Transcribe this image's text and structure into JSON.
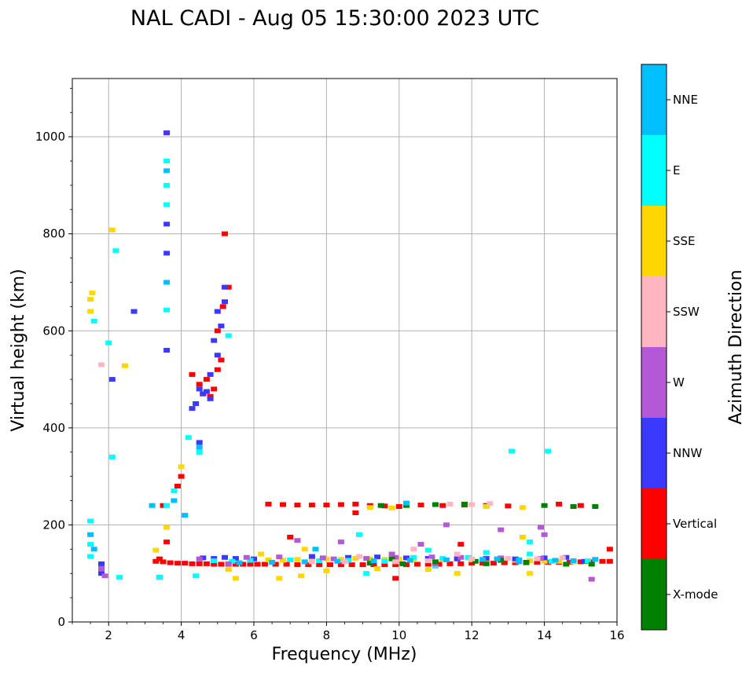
{
  "chart_data": {
    "type": "scatter",
    "title": "NAL CADI - Aug 05 15:30:00 2023 UTC",
    "xlabel": "Frequency (MHz)",
    "ylabel": "Virtual height (km)",
    "xlim": [
      1,
      16
    ],
    "ylim": [
      0,
      1120
    ],
    "xticks": [
      "2",
      "4",
      "6",
      "8",
      "10",
      "12",
      "14",
      "16"
    ],
    "yticks": [
      "0",
      "200",
      "400",
      "600",
      "800",
      "1000"
    ],
    "xtick_values": [
      2,
      4,
      6,
      8,
      10,
      12,
      14,
      16
    ],
    "ytick_values": [
      0,
      200,
      400,
      600,
      800,
      1000
    ],
    "grid": true,
    "colorbar": {
      "label": "Azimuth Direction",
      "categories": [
        {
          "name": "X-mode",
          "color": "#008000"
        },
        {
          "name": "Vertical",
          "color": "#ff0000"
        },
        {
          "name": "NNW",
          "color": "#3a3aff"
        },
        {
          "name": "W",
          "color": "#b558d6"
        },
        {
          "name": "SSW",
          "color": "#ffb6c1"
        },
        {
          "name": "SSE",
          "color": "#ffd700"
        },
        {
          "name": "E",
          "color": "#00ffff"
        },
        {
          "name": "NNE",
          "color": "#00bfff"
        }
      ]
    },
    "series": [
      {
        "name": "Vertical",
        "points": [
          [
            3.3,
            125
          ],
          [
            3.5,
            124
          ],
          [
            3.7,
            122
          ],
          [
            3.9,
            121
          ],
          [
            4.1,
            121
          ],
          [
            4.3,
            120
          ],
          [
            4.5,
            120
          ],
          [
            4.7,
            120
          ],
          [
            4.9,
            119
          ],
          [
            5.1,
            119
          ],
          [
            5.3,
            119
          ],
          [
            5.5,
            119
          ],
          [
            5.7,
            119
          ],
          [
            5.9,
            119
          ],
          [
            6.1,
            119
          ],
          [
            6.3,
            119
          ],
          [
            6.6,
            119
          ],
          [
            6.9,
            119
          ],
          [
            7.2,
            118
          ],
          [
            7.5,
            118
          ],
          [
            7.8,
            118
          ],
          [
            8.1,
            118
          ],
          [
            8.4,
            118
          ],
          [
            8.7,
            118
          ],
          [
            9.0,
            118
          ],
          [
            9.3,
            118
          ],
          [
            9.6,
            118
          ],
          [
            9.9,
            118
          ],
          [
            10.2,
            118
          ],
          [
            10.5,
            119
          ],
          [
            10.8,
            119
          ],
          [
            11.1,
            119
          ],
          [
            11.4,
            120
          ],
          [
            11.7,
            120
          ],
          [
            12.0,
            121
          ],
          [
            12.3,
            121
          ],
          [
            12.6,
            121
          ],
          [
            12.9,
            122
          ],
          [
            13.2,
            122
          ],
          [
            13.5,
            122
          ],
          [
            13.8,
            123
          ],
          [
            14.1,
            123
          ],
          [
            14.4,
            123
          ],
          [
            14.7,
            123
          ],
          [
            15.0,
            124
          ],
          [
            15.3,
            124
          ],
          [
            15.6,
            125
          ],
          [
            15.8,
            125
          ],
          [
            6.4,
            243
          ],
          [
            6.8,
            242
          ],
          [
            7.2,
            241
          ],
          [
            7.6,
            241
          ],
          [
            8.0,
            241
          ],
          [
            8.4,
            242
          ],
          [
            8.8,
            243
          ],
          [
            9.2,
            240
          ],
          [
            9.6,
            239
          ],
          [
            10.0,
            238
          ],
          [
            10.6,
            241
          ],
          [
            11.2,
            240
          ],
          [
            11.8,
            241
          ],
          [
            12.4,
            240
          ],
          [
            13.0,
            239
          ],
          [
            14.4,
            243
          ],
          [
            15.0,
            240
          ],
          [
            4.3,
            510
          ],
          [
            4.5,
            490
          ],
          [
            4.6,
            470
          ],
          [
            4.7,
            500
          ],
          [
            4.8,
            465
          ],
          [
            4.9,
            480
          ],
          [
            5.0,
            520
          ],
          [
            5.1,
            540
          ],
          [
            5.15,
            650
          ],
          [
            5.0,
            600
          ],
          [
            3.5,
            240
          ],
          [
            3.9,
            280
          ],
          [
            4.0,
            300
          ],
          [
            3.6,
            165
          ],
          [
            3.4,
            130
          ],
          [
            7.0,
            175
          ],
          [
            8.8,
            225
          ],
          [
            9.9,
            90
          ],
          [
            11.7,
            160
          ],
          [
            15.8,
            150
          ],
          [
            5.2,
            800
          ],
          [
            5.3,
            690
          ],
          [
            3.6,
            1008
          ]
        ]
      },
      {
        "name": "SSE",
        "points": [
          [
            6.4,
            128
          ],
          [
            6.8,
            127
          ],
          [
            7.2,
            129
          ],
          [
            7.6,
            128
          ],
          [
            8.0,
            130
          ],
          [
            8.4,
            129
          ],
          [
            8.8,
            131
          ],
          [
            9.2,
            130
          ],
          [
            9.6,
            129
          ],
          [
            10.0,
            130
          ],
          [
            10.4,
            128
          ],
          [
            10.8,
            130
          ],
          [
            11.2,
            129
          ],
          [
            11.6,
            130
          ],
          [
            12.0,
            128
          ],
          [
            12.4,
            129
          ],
          [
            12.8,
            128
          ],
          [
            13.2,
            127
          ],
          [
            13.6,
            126
          ],
          [
            14.0,
            125
          ],
          [
            14.4,
            125
          ],
          [
            14.8,
            124
          ],
          [
            15.2,
            124
          ],
          [
            6.2,
            140
          ],
          [
            7.4,
            150
          ],
          [
            8.0,
            105
          ],
          [
            9.4,
            110
          ],
          [
            10.8,
            108
          ],
          [
            11.6,
            100
          ],
          [
            13.4,
            175
          ],
          [
            13.6,
            100
          ],
          [
            12.4,
            238
          ],
          [
            13.4,
            236
          ],
          [
            9.2,
            236
          ],
          [
            9.8,
            235
          ],
          [
            1.5,
            665
          ],
          [
            1.5,
            640
          ],
          [
            1.55,
            678
          ],
          [
            2.1,
            808
          ],
          [
            2.45,
            528
          ],
          [
            3.3,
            148
          ],
          [
            3.6,
            195
          ],
          [
            4.0,
            320
          ],
          [
            5.5,
            90
          ],
          [
            6.7,
            90
          ],
          [
            7.3,
            95
          ],
          [
            5.3,
            108
          ]
        ]
      },
      {
        "name": "NNW",
        "points": [
          [
            4.6,
            132
          ],
          [
            4.9,
            131
          ],
          [
            5.2,
            133
          ],
          [
            5.5,
            131
          ],
          [
            6.0,
            130
          ],
          [
            7.6,
            135
          ],
          [
            8.6,
            133
          ],
          [
            9.4,
            134
          ],
          [
            10.2,
            132
          ],
          [
            10.8,
            131
          ],
          [
            11.6,
            130
          ],
          [
            12.4,
            131
          ],
          [
            13.2,
            130
          ],
          [
            14.0,
            132
          ],
          [
            14.6,
            133
          ],
          [
            15.1,
            125
          ],
          [
            3.6,
            1008
          ],
          [
            3.6,
            760
          ],
          [
            3.6,
            820
          ],
          [
            3.6,
            560
          ],
          [
            4.5,
            480
          ],
          [
            4.6,
            470
          ],
          [
            4.7,
            475
          ],
          [
            4.8,
            460
          ],
          [
            4.9,
            580
          ],
          [
            5.0,
            640
          ],
          [
            5.1,
            610
          ],
          [
            5.2,
            660
          ],
          [
            4.3,
            440
          ],
          [
            4.4,
            450
          ],
          [
            4.5,
            370
          ],
          [
            1.8,
            120
          ],
          [
            1.8,
            100
          ],
          [
            2.7,
            640
          ],
          [
            2.1,
            500
          ],
          [
            3.4,
            92
          ],
          [
            5.2,
            690
          ],
          [
            5.0,
            550
          ],
          [
            4.8,
            510
          ]
        ]
      },
      {
        "name": "E",
        "points": [
          [
            4.9,
            126
          ],
          [
            5.4,
            125
          ],
          [
            5.9,
            127
          ],
          [
            7.0,
            128
          ],
          [
            7.8,
            126
          ],
          [
            8.6,
            127
          ],
          [
            9.6,
            125
          ],
          [
            10.4,
            133
          ],
          [
            11.2,
            131
          ],
          [
            11.9,
            133
          ],
          [
            12.4,
            143
          ],
          [
            13.6,
            140
          ],
          [
            14.2,
            125
          ],
          [
            15.2,
            126
          ],
          [
            3.6,
            950
          ],
          [
            3.6,
            900
          ],
          [
            3.6,
            860
          ],
          [
            3.6,
            643
          ],
          [
            4.2,
            380
          ],
          [
            4.5,
            350
          ],
          [
            3.8,
            270
          ],
          [
            3.6,
            240
          ],
          [
            5.3,
            590
          ],
          [
            1.6,
            620
          ],
          [
            2.0,
            575
          ],
          [
            2.1,
            340
          ],
          [
            2.2,
            765
          ],
          [
            13.1,
            352
          ],
          [
            14.1,
            352
          ],
          [
            13.6,
            165
          ],
          [
            10.8,
            148
          ],
          [
            8.9,
            180
          ],
          [
            9.1,
            100
          ],
          [
            4.4,
            95
          ],
          [
            3.4,
            92
          ],
          [
            2.3,
            92
          ],
          [
            1.5,
            208
          ],
          [
            1.5,
            160
          ],
          [
            1.5,
            135
          ],
          [
            11.0,
            115
          ]
        ]
      },
      {
        "name": "W",
        "points": [
          [
            5.8,
            133
          ],
          [
            6.7,
            134
          ],
          [
            7.9,
            132
          ],
          [
            9.1,
            131
          ],
          [
            9.9,
            133
          ],
          [
            10.9,
            134
          ],
          [
            11.7,
            133
          ],
          [
            12.8,
            132
          ],
          [
            13.9,
            131
          ],
          [
            15.3,
            88
          ],
          [
            11.3,
            200
          ],
          [
            13.9,
            195
          ],
          [
            1.9,
            95
          ],
          [
            1.8,
            110
          ],
          [
            7.2,
            168
          ],
          [
            8.4,
            165
          ],
          [
            9.8,
            140
          ],
          [
            10.6,
            160
          ],
          [
            12.8,
            190
          ],
          [
            14.0,
            180
          ],
          [
            4.5,
            130
          ],
          [
            5.3,
            120
          ],
          [
            8.2,
            130
          ],
          [
            11.0,
            120
          ]
        ]
      },
      {
        "name": "X-mode",
        "points": [
          [
            9.2,
            121
          ],
          [
            10.1,
            120
          ],
          [
            11.0,
            124
          ],
          [
            12.1,
            125
          ],
          [
            12.8,
            127
          ],
          [
            13.5,
            123
          ],
          [
            14.6,
            119
          ],
          [
            15.3,
            119
          ],
          [
            9.5,
            240
          ],
          [
            10.2,
            240
          ],
          [
            11.0,
            242
          ],
          [
            11.8,
            243
          ],
          [
            14.0,
            240
          ],
          [
            14.8,
            238
          ],
          [
            15.4,
            238
          ],
          [
            9.8,
            130
          ],
          [
            12.4,
            120
          ]
        ]
      },
      {
        "name": "SSW",
        "points": [
          [
            7.6,
            124
          ],
          [
            8.5,
            124
          ],
          [
            9.9,
            124
          ],
          [
            10.8,
            126
          ],
          [
            12.0,
            130
          ],
          [
            13.0,
            131
          ],
          [
            13.8,
            130
          ],
          [
            12.0,
            242
          ],
          [
            12.5,
            244
          ],
          [
            11.4,
            243
          ],
          [
            1.8,
            530
          ],
          [
            10.4,
            150
          ],
          [
            11.6,
            140
          ],
          [
            14.5,
            132
          ],
          [
            8.9,
            135
          ]
        ]
      },
      {
        "name": "NNE",
        "points": [
          [
            5.6,
            122
          ],
          [
            6.5,
            123
          ],
          [
            7.4,
            124
          ],
          [
            8.3,
            125
          ],
          [
            9.3,
            126
          ],
          [
            10.3,
            127
          ],
          [
            11.3,
            128
          ],
          [
            12.3,
            129
          ],
          [
            13.3,
            128
          ],
          [
            14.3,
            127
          ],
          [
            15.4,
            129
          ],
          [
            3.6,
            930
          ],
          [
            3.6,
            700
          ],
          [
            4.5,
            360
          ],
          [
            3.8,
            250
          ],
          [
            4.1,
            220
          ],
          [
            1.5,
            180
          ],
          [
            1.6,
            150
          ],
          [
            3.2,
            240
          ],
          [
            10.2,
            245
          ],
          [
            12.7,
            130
          ],
          [
            13.3,
            124
          ],
          [
            14.8,
            126
          ],
          [
            7.7,
            150
          ]
        ]
      }
    ]
  }
}
